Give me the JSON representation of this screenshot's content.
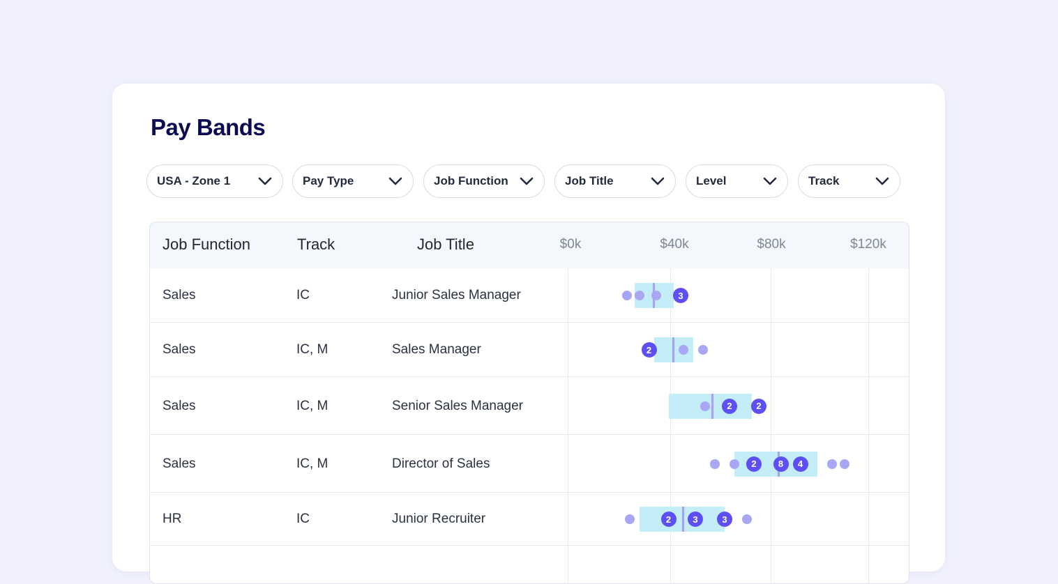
{
  "title": "Pay Bands",
  "filters": [
    {
      "label": "USA - Zone 1"
    },
    {
      "label": "Pay Type"
    },
    {
      "label": "Job Function"
    },
    {
      "label": "Job Title"
    },
    {
      "label": "Level"
    },
    {
      "label": "Track"
    }
  ],
  "columns": {
    "job_function": "Job Function",
    "track": "Track",
    "job_title": "Job Title"
  },
  "axis_ticks": [
    "$0k",
    "$40k",
    "$80k",
    "$120k"
  ],
  "colors": {
    "band": "#c4eef7",
    "median": "#a8a3f1",
    "dot": "#a9a6f4",
    "badge": "#5d4ff2",
    "title": "#0d0c52"
  },
  "rows": [
    {
      "job_function": "Sales",
      "track": "IC",
      "job_title": "Junior Sales Manager",
      "band_min_k": 27,
      "band_max_k": 43,
      "median_k": 35,
      "markers": [
        {
          "k": 24
        },
        {
          "k": 29
        },
        {
          "k": 36
        },
        {
          "k": 46,
          "count": "3"
        }
      ]
    },
    {
      "job_function": "Sales",
      "track": "IC, M",
      "job_title": "Sales Manager",
      "band_min_k": 35,
      "band_max_k": 51,
      "median_k": 43,
      "markers": [
        {
          "k": 33,
          "count": "2"
        },
        {
          "k": 47
        },
        {
          "k": 55
        }
      ]
    },
    {
      "job_function": "Sales",
      "track": "IC, M",
      "job_title": "Senior Sales Manager",
      "band_min_k": 41,
      "band_max_k": 75,
      "median_k": 59,
      "markers": [
        {
          "k": 56
        },
        {
          "k": 66,
          "count": "2"
        },
        {
          "k": 78,
          "count": "2"
        }
      ]
    },
    {
      "job_function": "Sales",
      "track": "IC, M",
      "job_title": "Director of Sales",
      "band_min_k": 68,
      "band_max_k": 102,
      "median_k": 86,
      "markers": [
        {
          "k": 60
        },
        {
          "k": 68
        },
        {
          "k": 76,
          "count": "2"
        },
        {
          "k": 87,
          "count": "8"
        },
        {
          "k": 95,
          "count": "4"
        },
        {
          "k": 108
        },
        {
          "k": 113
        }
      ]
    },
    {
      "job_function": "HR",
      "track": "IC",
      "job_title": "Junior Recruiter",
      "band_min_k": 29,
      "band_max_k": 64,
      "median_k": 47,
      "markers": [
        {
          "k": 25
        },
        {
          "k": 41,
          "count": "2"
        },
        {
          "k": 52,
          "count": "3"
        },
        {
          "k": 64,
          "count": "3"
        },
        {
          "k": 73
        }
      ]
    }
  ]
}
